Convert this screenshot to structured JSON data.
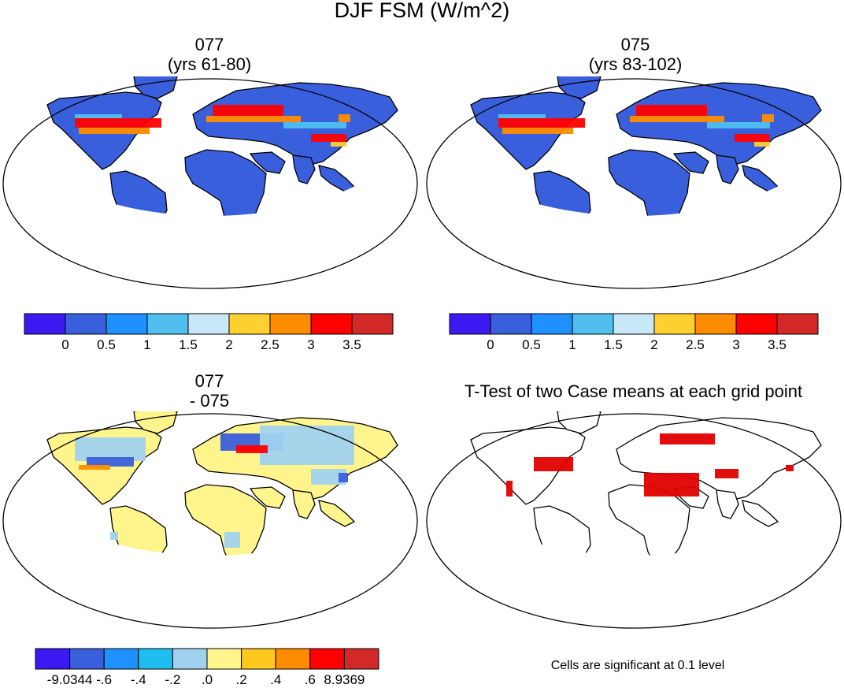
{
  "title": "DJF FSM (W/m^2)",
  "panels": [
    {
      "id": "p1",
      "title_line1": "077",
      "title_line2": "(yrs 61-80)"
    },
    {
      "id": "p2",
      "title_line1": "075",
      "title_line2": "(yrs 83-102)"
    },
    {
      "id": "p3",
      "title_line1": "077",
      "title_line2": "- 075"
    },
    {
      "id": "p4",
      "title_line1": "T-Test of two Case means at each grid point",
      "title_line2": ""
    }
  ],
  "colorbar_abs": {
    "colors": [
      "#3c19f0",
      "#3a5fdc",
      "#1e90ff",
      "#50bff0",
      "#c8e8f8",
      "#ffd030",
      "#ff8c00",
      "#ff0000",
      "#d22828"
    ],
    "labels": [
      "0",
      "0.5",
      "1",
      "1.5",
      "2",
      "2.5",
      "3",
      "3.5"
    ]
  },
  "colorbar_diff": {
    "colors": [
      "#3c19f0",
      "#3a5fdc",
      "#1e90ff",
      "#1ebef0",
      "#a0d2f0",
      "#fff58c",
      "#ffc81e",
      "#ff8c00",
      "#ff0000",
      "#d22828"
    ],
    "labels": [
      "-9.0344",
      "-.6",
      "-.4",
      "-.2",
      ".0",
      ".2",
      ".4",
      ".6",
      "8.9369"
    ]
  },
  "significance_note": "Cells are significant at 0.1 level",
  "legend_colors": {
    "land_abs": "#3a5fdc",
    "land_diff": "#fff58c",
    "signif": "#e00000"
  }
}
